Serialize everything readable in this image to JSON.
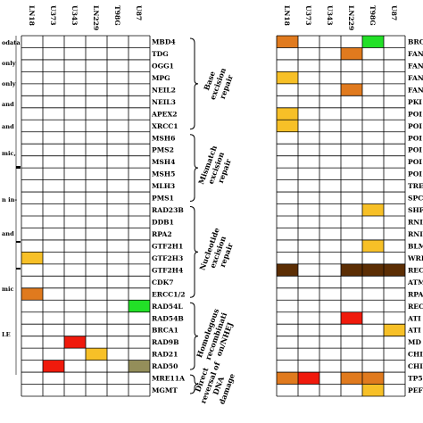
{
  "colors": {
    "orange": "#e07a1e",
    "yellow": "#f7c027",
    "red": "#f01a0c",
    "green": "#22e027",
    "olive": "#948e5a",
    "darkbrown": "#5c2e04",
    "grid": "#000000"
  },
  "legend_fragments": [
    "odata",
    "only",
    "only",
    "and",
    "and",
    "mic,",
    "n in-",
    "and",
    "mic",
    "LE"
  ],
  "left_panel": {
    "columns": [
      "LN18",
      "U373",
      "U343",
      "LN229",
      "T98G",
      "U87"
    ],
    "genes": [
      "MBD4",
      "TDG",
      "OGG1",
      "MPG",
      "NEIL2",
      "NEIL3",
      "APEX2",
      "XRCC1",
      "MSH6",
      "PMS2",
      "MSH4",
      "MSH5",
      "MLH3",
      "PMS1",
      "RAD23B",
      "DDB1",
      "RPA2",
      "GTF2H1",
      "GTF2H3",
      "GTF2H4",
      "CDK7",
      "ERCC1/2",
      "RAD54L",
      "RAD54B",
      "BRCA1",
      "RAD9B",
      "RAD21",
      "RAD50",
      "MRE11A",
      "MGMT"
    ],
    "cells": [
      {
        "row": 18,
        "col": 0,
        "color": "yellow"
      },
      {
        "row": 21,
        "col": 0,
        "color": "orange"
      },
      {
        "row": 22,
        "col": 5,
        "color": "green"
      },
      {
        "row": 25,
        "col": 2,
        "color": "red"
      },
      {
        "row": 26,
        "col": 3,
        "color": "yellow"
      },
      {
        "row": 27,
        "col": 1,
        "color": "red"
      },
      {
        "row": 27,
        "col": 5,
        "color": "olive"
      }
    ]
  },
  "categories": [
    {
      "id": "ber",
      "lines": [
        "Base",
        "excision",
        "repair"
      ],
      "start": 0,
      "end": 7
    },
    {
      "id": "mmr",
      "lines": [
        "Mismatch",
        "excision",
        "repair"
      ],
      "start": 8,
      "end": 13
    },
    {
      "id": "ner",
      "lines": [
        "Nucleotide",
        "excision",
        "repair"
      ],
      "start": 14,
      "end": 21
    },
    {
      "id": "hr",
      "lines": [
        "Homologous",
        "recombinati",
        "on/NHEJ"
      ],
      "start": 22,
      "end": 27
    },
    {
      "id": "drr",
      "lines": [
        "Direct",
        "reversal of",
        "DNA",
        "damage"
      ],
      "start": 28,
      "end": 29
    }
  ],
  "right_panel": {
    "columns": [
      "LN18",
      "U373",
      "U343",
      "LN229",
      "T98G",
      "U87"
    ],
    "genes": [
      "BRC",
      "FAN",
      "FAN",
      "FAN",
      "FAN",
      "PKI",
      "POI",
      "POI",
      "POI",
      "POI",
      "POI",
      "POI",
      "TRE",
      "SPC",
      "SHF",
      "RNI",
      "RNI",
      "BLM",
      "WRI",
      "REC",
      "ATM",
      "RPA",
      "REC",
      "ATI",
      "ATI",
      "MD",
      "CHI",
      "CHI",
      "TP5",
      "PEF"
    ],
    "cells": [
      {
        "row": 0,
        "col": 0,
        "color": "orange"
      },
      {
        "row": 0,
        "col": 4,
        "color": "green"
      },
      {
        "row": 1,
        "col": 3,
        "color": "orange"
      },
      {
        "row": 3,
        "col": 0,
        "color": "yellow"
      },
      {
        "row": 4,
        "col": 3,
        "color": "orange"
      },
      {
        "row": 6,
        "col": 0,
        "color": "yellow"
      },
      {
        "row": 7,
        "col": 0,
        "color": "yellow"
      },
      {
        "row": 14,
        "col": 4,
        "color": "yellow"
      },
      {
        "row": 17,
        "col": 4,
        "color": "yellow"
      },
      {
        "row": 19,
        "col": 0,
        "color": "darkbrown"
      },
      {
        "row": 19,
        "col": 3,
        "color": "darkbrown"
      },
      {
        "row": 19,
        "col": 4,
        "color": "darkbrown"
      },
      {
        "row": 19,
        "col": 5,
        "color": "darkbrown"
      },
      {
        "row": 23,
        "col": 3,
        "color": "red"
      },
      {
        "row": 24,
        "col": 5,
        "color": "yellow"
      },
      {
        "row": 28,
        "col": 0,
        "color": "orange"
      },
      {
        "row": 28,
        "col": 1,
        "color": "red"
      },
      {
        "row": 28,
        "col": 3,
        "color": "orange"
      },
      {
        "row": 28,
        "col": 4,
        "color": "orange"
      },
      {
        "row": 29,
        "col": 4,
        "color": "yellow"
      }
    ]
  }
}
